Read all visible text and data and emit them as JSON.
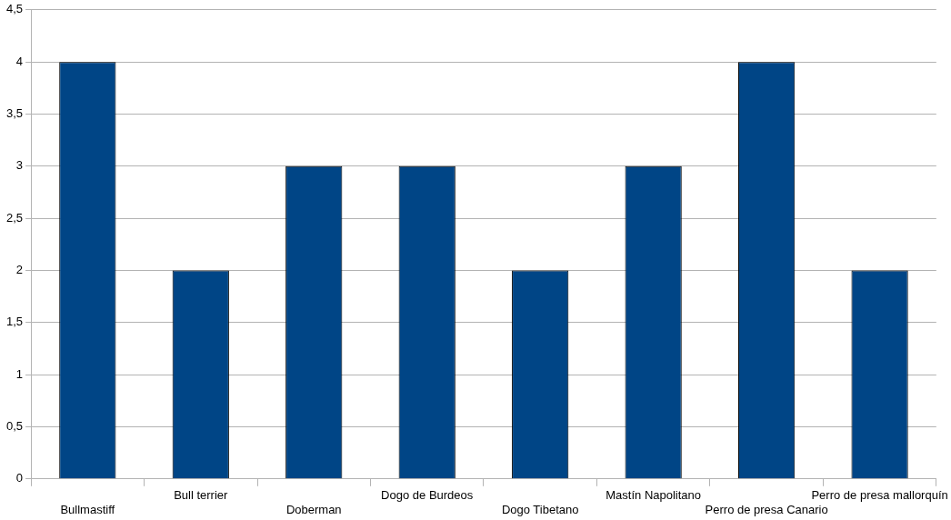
{
  "chart_data": {
    "type": "bar",
    "categories": [
      "Bullmastiff",
      "Bull terrier",
      "Doberman",
      "Dogo de Burdeos",
      "Dogo Tibetano",
      "Mastín Napolitano",
      "Perro de presa Canario",
      "Perro de presa mallorquín"
    ],
    "values": [
      4,
      2,
      3,
      3,
      2,
      3,
      4,
      2
    ],
    "color": "#004586",
    "ylim": [
      0,
      4.5
    ],
    "yticks": [
      0,
      {
        "value": 0.5,
        "label": "0,5"
      },
      1,
      {
        "value": 1.5,
        "label": "1,5"
      },
      2,
      {
        "value": 2.5,
        "label": "2,5"
      },
      3,
      {
        "value": 3.5,
        "label": "3,5"
      },
      4,
      {
        "value": 4.5,
        "label": "4,5"
      }
    ],
    "grid": "y",
    "legend": false
  }
}
